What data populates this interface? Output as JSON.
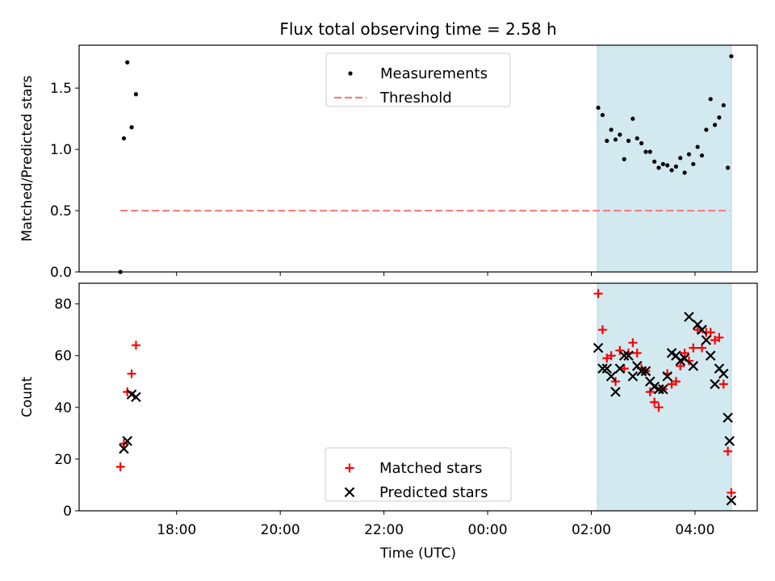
{
  "title": "Flux total observing time = 2.58 h",
  "colors": {
    "shade": "#d3e9f0",
    "threshold": "#f08080",
    "matched": "#ff0000",
    "predicted": "#000000",
    "measurement": "#000000"
  },
  "chart_data": [
    {
      "type": "scatter",
      "ylabel": "Matched/Predicted stars",
      "ylim": [
        0,
        1.85
      ],
      "yticks": [
        0.0,
        0.5,
        1.0,
        1.5
      ],
      "ytick_labels": [
        "0.0",
        "0.5",
        "1.0",
        "1.5"
      ],
      "shaded_region": {
        "x": [
          "02:07",
          "04:42"
        ]
      },
      "threshold": {
        "value": 0.5,
        "x": [
          "16:55",
          "04:40"
        ]
      },
      "legend": {
        "placement": "upper center",
        "entries": [
          "Measurements",
          "Threshold"
        ]
      },
      "series": [
        {
          "name": "Measurements",
          "marker": "dot",
          "points": [
            [
              "16:55",
              0.0
            ],
            [
              "16:59",
              1.09
            ],
            [
              "17:03",
              1.71
            ],
            [
              "17:08",
              1.18
            ],
            [
              "17:13",
              1.45
            ],
            [
              "02:08",
              1.34
            ],
            [
              "02:13",
              1.28
            ],
            [
              "02:18",
              1.07
            ],
            [
              "02:23",
              1.16
            ],
            [
              "02:28",
              1.08
            ],
            [
              "02:33",
              1.12
            ],
            [
              "02:38",
              0.92
            ],
            [
              "02:43",
              1.07
            ],
            [
              "02:48",
              1.25
            ],
            [
              "02:53",
              1.09
            ],
            [
              "02:58",
              1.05
            ],
            [
              "03:03",
              0.98
            ],
            [
              "03:08",
              0.98
            ],
            [
              "03:13",
              0.9
            ],
            [
              "03:18",
              0.85
            ],
            [
              "03:23",
              0.88
            ],
            [
              "03:28",
              0.87
            ],
            [
              "03:33",
              0.83
            ],
            [
              "03:38",
              0.86
            ],
            [
              "03:43",
              0.93
            ],
            [
              "03:48",
              0.81
            ],
            [
              "03:53",
              0.96
            ],
            [
              "03:58",
              0.88
            ],
            [
              "04:03",
              1.02
            ],
            [
              "04:08",
              0.95
            ],
            [
              "04:13",
              1.16
            ],
            [
              "04:18",
              1.41
            ],
            [
              "04:23",
              1.2
            ],
            [
              "04:28",
              1.26
            ],
            [
              "04:33",
              1.36
            ],
            [
              "04:38",
              0.85
            ],
            [
              "04:42",
              1.76
            ]
          ]
        }
      ]
    },
    {
      "type": "scatter",
      "xlabel": "Time (UTC)",
      "ylabel": "Count",
      "ylim": [
        0,
        88
      ],
      "yticks": [
        0,
        20,
        40,
        60,
        80
      ],
      "ytick_labels": [
        "0",
        "20",
        "40",
        "60",
        "80"
      ],
      "xticks": [
        "18:00",
        "20:00",
        "22:00",
        "00:00",
        "02:00",
        "04:00"
      ],
      "shaded_region": {
        "x": [
          "02:07",
          "04:42"
        ]
      },
      "legend": {
        "placement": "lower center",
        "entries": [
          "Matched stars",
          "Predicted stars"
        ]
      },
      "series": [
        {
          "name": "Matched stars",
          "marker": "plus",
          "points": [
            [
              "16:55",
              17
            ],
            [
              "16:59",
              26
            ],
            [
              "17:03",
              46
            ],
            [
              "17:08",
              53
            ],
            [
              "17:13",
              64
            ],
            [
              "02:08",
              84
            ],
            [
              "02:13",
              70
            ],
            [
              "02:18",
              59
            ],
            [
              "02:23",
              60
            ],
            [
              "02:28",
              50
            ],
            [
              "02:33",
              62
            ],
            [
              "02:38",
              55
            ],
            [
              "02:43",
              61
            ],
            [
              "02:48",
              65
            ],
            [
              "02:53",
              61
            ],
            [
              "02:58",
              55
            ],
            [
              "03:03",
              54
            ],
            [
              "03:08",
              46
            ],
            [
              "03:13",
              42
            ],
            [
              "03:18",
              40
            ],
            [
              "03:23",
              47
            ],
            [
              "03:28",
              53
            ],
            [
              "03:33",
              49
            ],
            [
              "03:38",
              50
            ],
            [
              "03:43",
              56
            ],
            [
              "03:48",
              61
            ],
            [
              "03:53",
              58
            ],
            [
              "03:58",
              63
            ],
            [
              "04:03",
              70
            ],
            [
              "04:08",
              63
            ],
            [
              "04:13",
              69
            ],
            [
              "04:18",
              69
            ],
            [
              "04:23",
              66
            ],
            [
              "04:28",
              67
            ],
            [
              "04:33",
              49
            ],
            [
              "04:38",
              23
            ],
            [
              "04:42",
              7
            ]
          ]
        },
        {
          "name": "Predicted stars",
          "marker": "x",
          "points": [
            [
              "16:59",
              24
            ],
            [
              "17:03",
              27
            ],
            [
              "17:08",
              45
            ],
            [
              "17:13",
              44
            ],
            [
              "02:08",
              63
            ],
            [
              "02:13",
              55
            ],
            [
              "02:18",
              55
            ],
            [
              "02:23",
              52
            ],
            [
              "02:28",
              46
            ],
            [
              "02:33",
              55
            ],
            [
              "02:38",
              60
            ],
            [
              "02:43",
              60
            ],
            [
              "02:48",
              52
            ],
            [
              "02:53",
              56
            ],
            [
              "02:58",
              54
            ],
            [
              "03:03",
              54
            ],
            [
              "03:08",
              50
            ],
            [
              "03:13",
              48
            ],
            [
              "03:18",
              47
            ],
            [
              "03:23",
              47
            ],
            [
              "03:28",
              52
            ],
            [
              "03:33",
              61
            ],
            [
              "03:38",
              60
            ],
            [
              "03:43",
              58
            ],
            [
              "03:48",
              59
            ],
            [
              "03:53",
              75
            ],
            [
              "03:58",
              56
            ],
            [
              "04:03",
              72
            ],
            [
              "04:08",
              70
            ],
            [
              "04:13",
              66
            ],
            [
              "04:18",
              60
            ],
            [
              "04:23",
              49
            ],
            [
              "04:28",
              55
            ],
            [
              "04:33",
              53
            ],
            [
              "04:38",
              36
            ],
            [
              "04:40",
              27
            ],
            [
              "04:42",
              4
            ]
          ]
        }
      ]
    }
  ]
}
